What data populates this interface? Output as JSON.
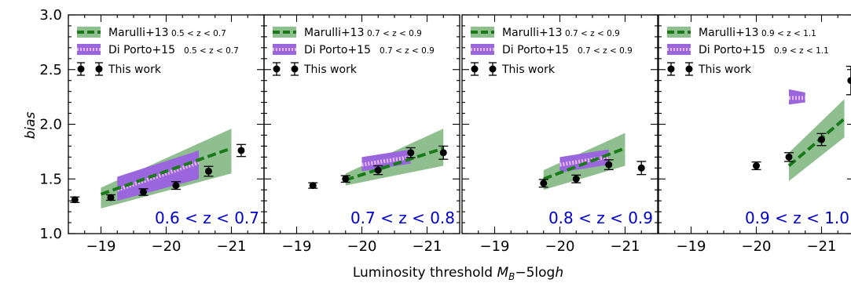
{
  "figure": {
    "xlabel": "Luminosity threshold M_B−5logh",
    "ylabel": "bias"
  },
  "colors": {
    "marulli_fill": "#8fbf8f",
    "marulli_line": "#1a7a1a",
    "diporto_fill": "#9a66dd",
    "diporto_line": "#e8b8e8",
    "points": "#000000",
    "zlabel": "#0000cc"
  },
  "chart_data": [
    {
      "type": "line",
      "panel_label": "0.6 < z < 0.7",
      "xlim": [
        -18.5,
        -21.5
      ],
      "ylim": [
        1.0,
        3.0
      ],
      "xticks": [
        -19,
        -20,
        -21
      ],
      "yticks": [
        1.0,
        1.5,
        2.0,
        2.5,
        3.0
      ],
      "legend": {
        "marulli": {
          "label": "Marulli+13",
          "range": "0.5 < z < 0.7"
        },
        "diporto": {
          "label": "Di Porto+15",
          "range": "0.5 < z < 0.7"
        },
        "thiswork": {
          "label": "This work"
        }
      },
      "marulli": {
        "x": [
          -19.0,
          -21.0
        ],
        "y": [
          1.36,
          1.78
        ],
        "band_lo": [
          1.23,
          1.55
        ],
        "band_hi": [
          1.42,
          1.96
        ]
      },
      "diporto": {
        "x": [
          -19.25,
          -20.5
        ],
        "y": [
          1.4,
          1.65
        ],
        "band_lo": [
          1.3,
          1.5
        ],
        "band_hi": [
          1.52,
          1.76
        ]
      },
      "thiswork": {
        "x": [
          -18.6,
          -19.15,
          -19.65,
          -20.15,
          -20.65,
          -21.15
        ],
        "y": [
          1.31,
          1.33,
          1.38,
          1.44,
          1.57,
          1.76
        ],
        "err": [
          0.025,
          0.025,
          0.03,
          0.035,
          0.045,
          0.055
        ]
      }
    },
    {
      "type": "line",
      "panel_label": "0.7 < z < 0.8",
      "xlim": [
        -18.5,
        -21.5
      ],
      "ylim": [
        1.0,
        3.0
      ],
      "xticks": [
        -19,
        -20,
        -21
      ],
      "yticks": [
        1.0,
        1.5,
        2.0,
        2.5,
        3.0
      ],
      "legend": {
        "marulli": {
          "label": "Marulli+13",
          "range": "0.7 < z < 0.9"
        },
        "diporto": {
          "label": "Di Porto+15",
          "range": "0.7 < z < 0.9"
        },
        "thiswork": {
          "label": "This work"
        }
      },
      "marulli": {
        "x": [
          -19.75,
          -21.25
        ],
        "y": [
          1.49,
          1.78
        ],
        "band_lo": [
          1.44,
          1.62
        ],
        "band_hi": [
          1.55,
          1.96
        ]
      },
      "diporto": {
        "x": [
          -20.0,
          -20.75
        ],
        "y": [
          1.63,
          1.7
        ],
        "band_lo": [
          1.57,
          1.64
        ],
        "band_hi": [
          1.7,
          1.77
        ]
      },
      "thiswork": {
        "x": [
          -19.25,
          -19.75,
          -20.25,
          -20.75,
          -21.25
        ],
        "y": [
          1.44,
          1.5,
          1.58,
          1.74,
          1.74
        ],
        "err": [
          0.025,
          0.03,
          0.04,
          0.045,
          0.06
        ]
      }
    },
    {
      "type": "line",
      "panel_label": "0.8 < z < 0.9",
      "xlim": [
        -18.5,
        -21.5
      ],
      "ylim": [
        1.0,
        3.0
      ],
      "xticks": [
        -19,
        -20,
        -21
      ],
      "yticks": [
        1.0,
        1.5,
        2.0,
        2.5,
        3.0
      ],
      "legend": {
        "marulli": {
          "label": "Marulli+13",
          "range": "0.7 < z < 0.9"
        },
        "diporto": {
          "label": "Di Porto+15",
          "range": "0.7 < z < 0.9"
        },
        "thiswork": {
          "label": "This work"
        }
      },
      "marulli": {
        "x": [
          -19.75,
          -21.0
        ],
        "y": [
          1.5,
          1.78
        ],
        "band_lo": [
          1.4,
          1.62
        ],
        "band_hi": [
          1.58,
          1.92
        ]
      },
      "diporto": {
        "x": [
          -20.0,
          -20.75
        ],
        "y": [
          1.63,
          1.7
        ],
        "band_lo": [
          1.56,
          1.63
        ],
        "band_hi": [
          1.7,
          1.77
        ]
      },
      "thiswork": {
        "x": [
          -19.75,
          -20.25,
          -20.75,
          -21.25
        ],
        "y": [
          1.46,
          1.5,
          1.63,
          1.6
        ],
        "err": [
          0.035,
          0.035,
          0.045,
          0.06
        ]
      }
    },
    {
      "type": "line",
      "panel_label": "0.9 < z < 1.0",
      "xlim": [
        -18.5,
        -21.5
      ],
      "ylim": [
        1.0,
        3.0
      ],
      "xticks": [
        -19,
        -20,
        -21
      ],
      "yticks": [
        1.0,
        1.5,
        2.0,
        2.5,
        3.0
      ],
      "legend": {
        "marulli": {
          "label": "Marulli+13",
          "range": "0.9 < z < 1.1"
        },
        "diporto": {
          "label": "Di Porto+15",
          "range": "0.9 < z < 1.1"
        },
        "thiswork": {
          "label": "This work"
        }
      },
      "marulli": {
        "x": [
          -20.5,
          -21.35
        ],
        "y": [
          1.62,
          2.05
        ],
        "band_lo": [
          1.48,
          1.88
        ],
        "band_hi": [
          1.74,
          2.23
        ]
      },
      "diporto": {
        "x": [
          -20.5,
          -20.75
        ],
        "y": [
          2.24,
          2.24
        ],
        "band_lo": [
          2.18,
          2.2
        ],
        "band_hi": [
          2.32,
          2.29
        ]
      },
      "thiswork": {
        "x": [
          -20.0,
          -20.5,
          -21.0,
          -21.45
        ],
        "y": [
          1.62,
          1.7,
          1.86,
          2.4
        ],
        "err": [
          0.035,
          0.04,
          0.055,
          0.13
        ]
      }
    }
  ]
}
